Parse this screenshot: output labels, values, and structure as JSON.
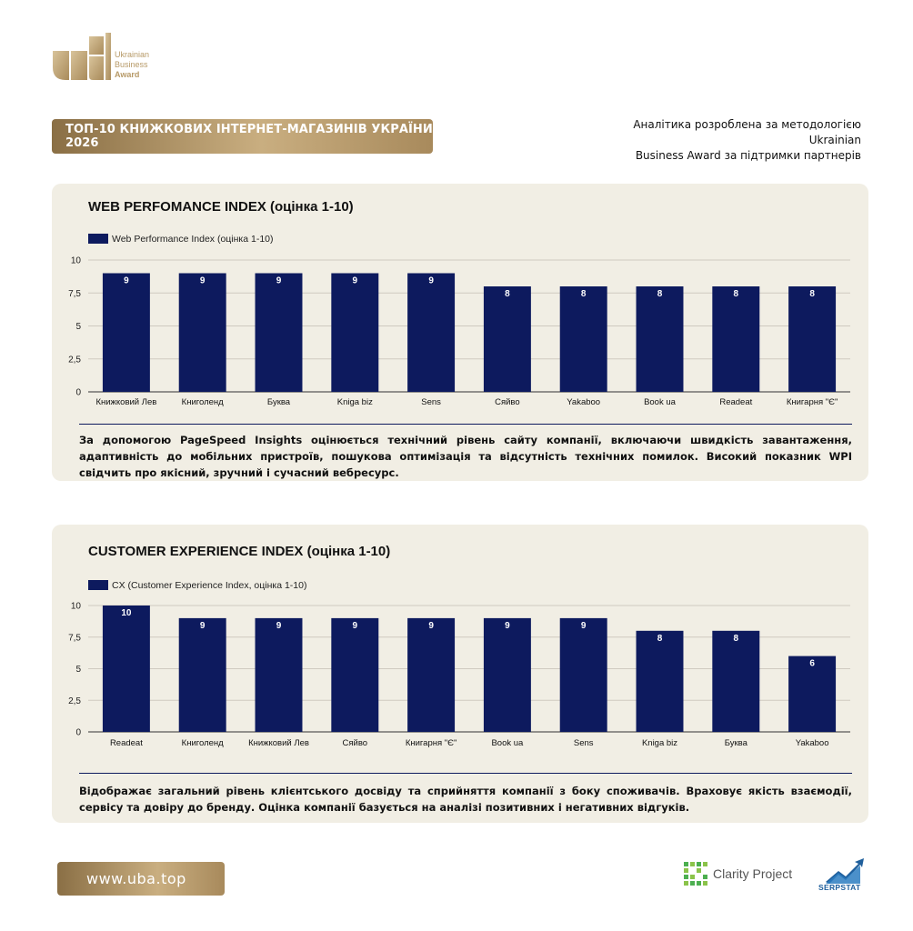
{
  "logo": {
    "line1": "Ukrainian",
    "line2": "Business",
    "line3": "Award"
  },
  "header": {
    "title": "ТОП-10 КНИЖКОВИХ ІНТЕРНЕТ-МАГАЗИНІВ УКРАЇНИ 2026",
    "note_line1": "Аналітика розроблена за методологією Ukrainian",
    "note_line2": "Business Award за підтримки партнерів"
  },
  "colors": {
    "bar": "#0d1a5e",
    "gold": "#b79a68",
    "card": "#f1eee4"
  },
  "sections": [
    {
      "heading": "WEB PERFOMANCE INDEX (оцінка 1-10)",
      "description": "За допомогою PageSpeed Insights оцінюється технічний рівень сайту компанії, включаючи швидкість завантаження, адаптивність до мобільних пристроїв, пошукова оптимізація та відсутність технічних помилок. Високий показник WPI свідчить про якісний, зручний і сучасний вебресурс."
    },
    {
      "heading": "CUSTOMER EXPERIENCE INDEX (оцінка 1-10)",
      "description": "Відображає загальний рівень клієнтського досвіду та сприйняття компанії з боку споживачів. Враховує якість взаємодії, сервісу та довіру до бренду. Оцінка компанії базується на аналізі позитивних і негативних відгуків."
    }
  ],
  "chart_data": [
    {
      "type": "bar",
      "categories": [
        "Книжковий Лев",
        "Книголенд",
        "Буква",
        "Kniga biz",
        "Sens",
        "Сяйво",
        "Yakaboo",
        "Book ua",
        "Readeat",
        "Книгарня \"Є\""
      ],
      "series": [
        {
          "name": "Web Performance Index (оцінка 1-10)",
          "values": [
            9,
            9,
            9,
            9,
            9,
            8,
            8,
            8,
            8,
            8
          ]
        }
      ],
      "ylim": [
        0,
        10
      ],
      "yticks": [
        "0",
        "2,5",
        "5",
        "7,5",
        "10"
      ],
      "grid": true,
      "legend": "top-left"
    },
    {
      "type": "bar",
      "categories": [
        "Readeat",
        "Книголенд",
        "Книжковий Лев",
        "Сяйво",
        "Книгарня \"Є\"",
        "Book ua",
        "Sens",
        "Kniga biz",
        "Буква",
        "Yakaboo"
      ],
      "series": [
        {
          "name": "CX (Customer Experience Index, оцінка 1-10)",
          "values": [
            10,
            9,
            9,
            9,
            9,
            9,
            9,
            8,
            8,
            6
          ]
        }
      ],
      "ylim": [
        0,
        10
      ],
      "yticks": [
        "0",
        "2,5",
        "5",
        "7,5",
        "10"
      ],
      "grid": true,
      "legend": "top-left"
    }
  ],
  "footer": {
    "site": "www.uba.top",
    "partner1": "Clarity Project",
    "partner2": "SERPSTAT"
  }
}
